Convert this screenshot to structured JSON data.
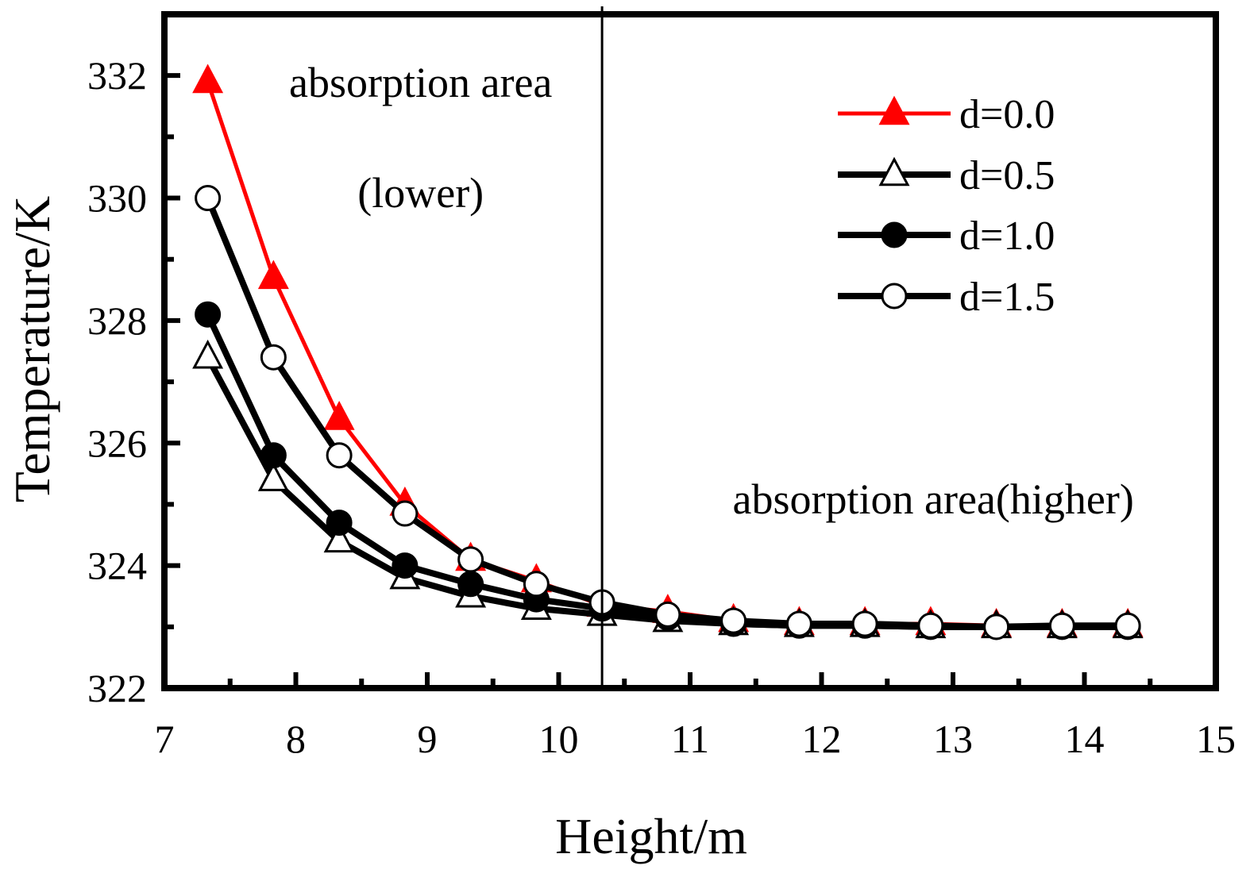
{
  "chart_data": {
    "type": "line",
    "xlabel": "Height/m",
    "ylabel": "Temperature/K",
    "xlim": [
      7,
      15
    ],
    "ylim": [
      322,
      333
    ],
    "xticks": [
      7,
      8,
      9,
      10,
      11,
      12,
      13,
      14,
      15
    ],
    "yticks": [
      322,
      324,
      326,
      328,
      330,
      332
    ],
    "divider_x": 10.33,
    "annotations": [
      {
        "text": "absorption area",
        "x": 8.95,
        "y": 331.65
      },
      {
        "text": "(lower)",
        "x": 8.95,
        "y": 329.85
      },
      {
        "text": "absorption area(higher)",
        "x": 12.85,
        "y": 324.85
      }
    ],
    "x": [
      7.33,
      7.83,
      8.33,
      8.83,
      9.33,
      9.83,
      10.33,
      10.83,
      11.33,
      11.83,
      12.33,
      12.83,
      13.33,
      13.83,
      14.33
    ],
    "series": [
      {
        "name": "d=0.0",
        "color": "#ff0000",
        "marker": "triangle-filled",
        "values": [
          331.9,
          328.7,
          326.4,
          325.0,
          324.1,
          323.75,
          323.35,
          323.25,
          323.1,
          323.05,
          323.05,
          323.05,
          323.02,
          323.02,
          323.02
        ]
      },
      {
        "name": "d=0.5",
        "color": "#000000",
        "marker": "triangle-open",
        "values": [
          327.4,
          325.4,
          324.4,
          323.8,
          323.5,
          323.3,
          323.2,
          323.1,
          323.05,
          323.02,
          323.02,
          323.0,
          323.0,
          323.0,
          323.0
        ]
      },
      {
        "name": "d=1.0",
        "color": "#000000",
        "marker": "circle-filled",
        "values": [
          328.1,
          325.8,
          324.7,
          324.0,
          323.7,
          323.45,
          323.3,
          323.15,
          323.05,
          323.02,
          323.02,
          323.0,
          323.0,
          323.0,
          323.0
        ]
      },
      {
        "name": "d=1.5",
        "color": "#000000",
        "marker": "circle-open",
        "values": [
          330.0,
          327.4,
          325.8,
          324.85,
          324.1,
          323.7,
          323.4,
          323.2,
          323.1,
          323.05,
          323.05,
          323.02,
          323.0,
          323.02,
          323.02
        ]
      }
    ]
  }
}
